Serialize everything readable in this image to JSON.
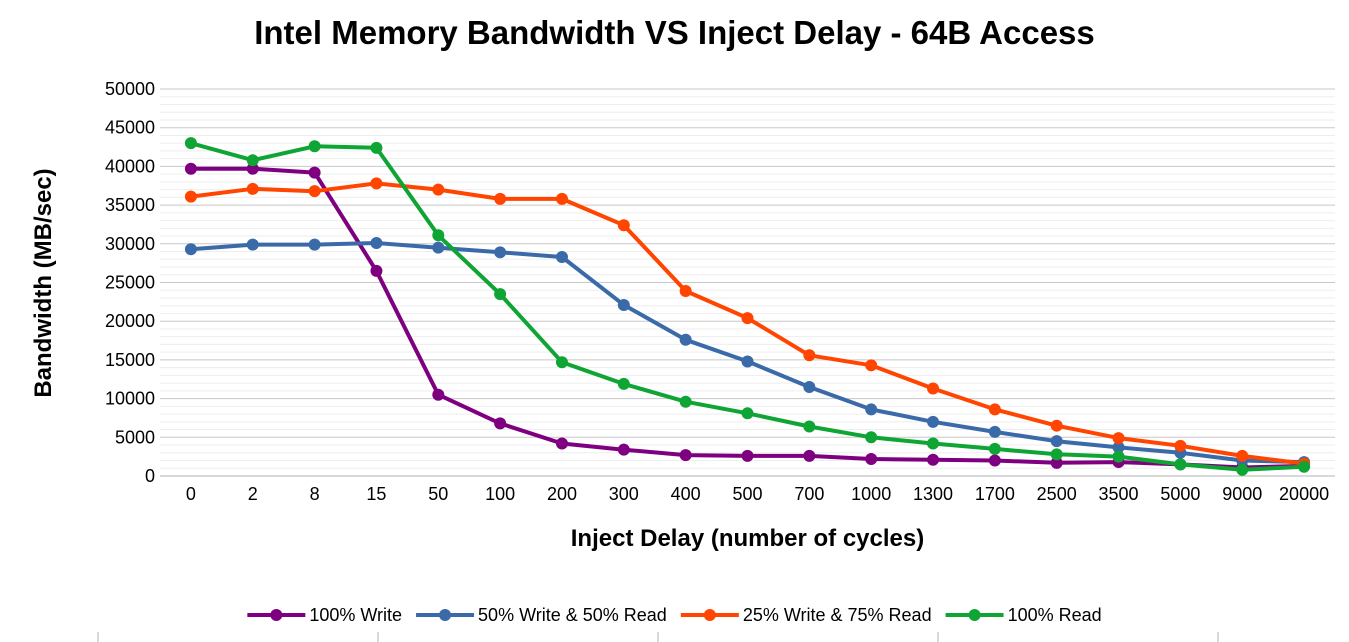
{
  "chart_data": {
    "type": "line",
    "title": "Intel Memory Bandwidth VS Inject Delay - 64B Access",
    "xlabel": "Inject Delay (number of cycles)",
    "ylabel": "Bandwidth (MB/sec)",
    "ylim": [
      0,
      50000
    ],
    "yticks": [
      0,
      5000,
      10000,
      15000,
      20000,
      25000,
      30000,
      35000,
      40000,
      45000,
      50000
    ],
    "categories": [
      "0",
      "2",
      "8",
      "15",
      "50",
      "100",
      "200",
      "300",
      "400",
      "500",
      "700",
      "1000",
      "1300",
      "1700",
      "2500",
      "3500",
      "5000",
      "9000",
      "20000"
    ],
    "grid": true,
    "legend": "bottom",
    "series": [
      {
        "name": "100% Write",
        "color": "#7e0080",
        "values": [
          39700,
          39700,
          39200,
          26500,
          10500,
          6800,
          4200,
          3400,
          2700,
          2600,
          2600,
          2200,
          2100,
          2000,
          1700,
          1800,
          1500,
          1100,
          1300
        ]
      },
      {
        "name": "50% Write & 50% Read",
        "color": "#3a6aa8",
        "values": [
          29300,
          29900,
          29900,
          30100,
          29500,
          28900,
          28300,
          22100,
          17600,
          14800,
          11500,
          8600,
          7000,
          5700,
          4500,
          3700,
          3000,
          2000,
          1800
        ]
      },
      {
        "name": "25% Write & 75% Read",
        "color": "#ff4500",
        "values": [
          36100,
          37100,
          36800,
          37800,
          37000,
          35800,
          35800,
          32400,
          23900,
          20400,
          15600,
          14300,
          11300,
          8600,
          6500,
          4900,
          3900,
          2600,
          1600
        ]
      },
      {
        "name": "100% Read",
        "color": "#0fa535",
        "values": [
          43000,
          40800,
          42600,
          42400,
          31100,
          23500,
          14700,
          11900,
          9600,
          8100,
          6400,
          5000,
          4200,
          3500,
          2800,
          2500,
          1500,
          800,
          1200
        ]
      }
    ]
  }
}
